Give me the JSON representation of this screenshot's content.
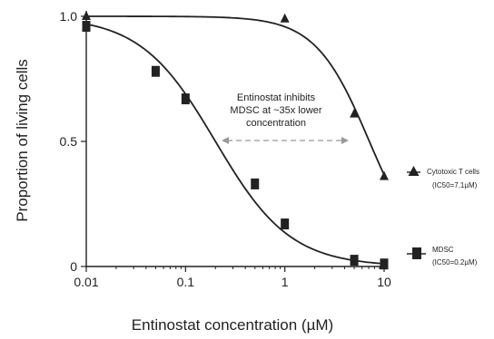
{
  "chart_data": {
    "type": "scatter",
    "xlabel": "Entinostat concentration (µM)",
    "ylabel": "Proportion of living cells",
    "xscale": "log",
    "xlim": [
      0.01,
      10
    ],
    "ylim": [
      0,
      1.0
    ],
    "xticks": [
      "0.01",
      "0.1",
      "1",
      "10"
    ],
    "yticks": [
      "0",
      "0.5",
      "1.0"
    ],
    "grid": false,
    "legend_position": "right",
    "annotation": [
      "Entinostat inhibits",
      "MDSC at ~35x lower",
      "concentration"
    ],
    "series": [
      {
        "name": "Cytotoxic T cells",
        "ic50_label": "(IC50=7.1µM)",
        "marker": "triangle",
        "x": [
          0.01,
          1,
          5,
          10
        ],
        "y": [
          1.0,
          0.99,
          0.61,
          0.36
        ],
        "ic50": 7.1
      },
      {
        "name": "MDSC",
        "ic50_label": "(IC50=0.2µM)",
        "marker": "square",
        "x": [
          0.01,
          0.05,
          0.1,
          0.5,
          1,
          5,
          10
        ],
        "y": [
          0.96,
          0.78,
          0.67,
          0.33,
          0.17,
          0.025,
          0.01
        ],
        "ic50": 0.2
      }
    ]
  }
}
